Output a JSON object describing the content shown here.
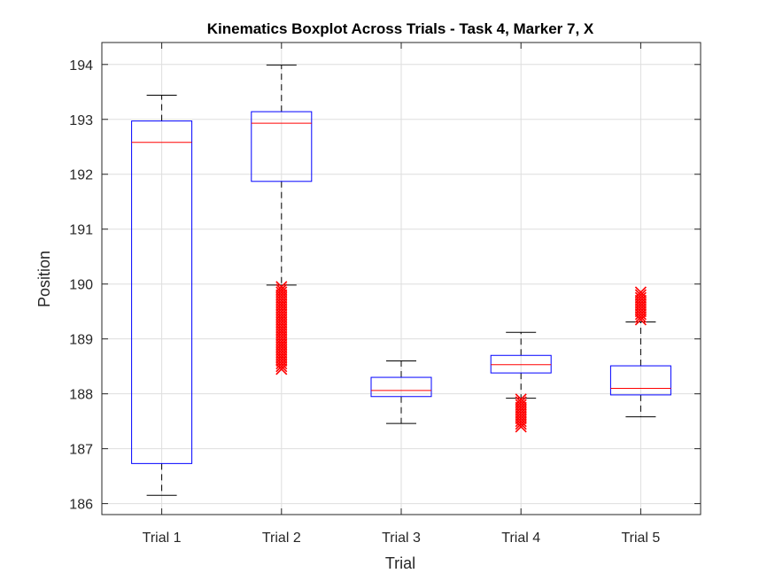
{
  "chart_data": {
    "type": "box",
    "title": "Kinematics Boxplot Across Trials - Task 4, Marker 7, X",
    "xlabel": "Trial",
    "ylabel": "Position",
    "categories": [
      "Trial 1",
      "Trial 2",
      "Trial 3",
      "Trial 4",
      "Trial 5"
    ],
    "ylim": [
      185.8,
      194.4
    ],
    "yticks": [
      186,
      187,
      188,
      189,
      190,
      191,
      192,
      193,
      194
    ],
    "grid": true,
    "series": [
      {
        "category": "Trial 1",
        "whisker_low": 186.15,
        "q1": 186.73,
        "median": 192.58,
        "q3": 192.97,
        "whisker_high": 193.44,
        "outliers": []
      },
      {
        "category": "Trial 2",
        "whisker_low": 189.98,
        "q1": 191.87,
        "median": 192.93,
        "q3": 193.14,
        "whisker_high": 193.99,
        "outliers": [
          189.95,
          189.9,
          189.85,
          189.8,
          189.75,
          189.7,
          189.65,
          189.6,
          189.55,
          189.5,
          189.45,
          189.4,
          189.35,
          189.3,
          189.25,
          189.2,
          189.15,
          189.1,
          189.05,
          189.0,
          188.95,
          188.9,
          188.85,
          188.8,
          188.75,
          188.7,
          188.65,
          188.6,
          188.55,
          188.5,
          188.45
        ]
      },
      {
        "category": "Trial 3",
        "whisker_low": 187.46,
        "q1": 187.95,
        "median": 188.06,
        "q3": 188.3,
        "whisker_high": 188.6,
        "outliers": []
      },
      {
        "category": "Trial 4",
        "whisker_low": 187.92,
        "q1": 188.38,
        "median": 188.53,
        "q3": 188.7,
        "whisker_high": 189.12,
        "outliers": [
          187.9,
          187.85,
          187.8,
          187.75,
          187.7,
          187.65,
          187.6,
          187.55,
          187.5,
          187.45,
          187.4
        ]
      },
      {
        "category": "Trial 5",
        "whisker_low": 187.58,
        "q1": 187.98,
        "median": 188.1,
        "q3": 188.51,
        "whisker_high": 189.31,
        "outliers": [
          189.35,
          189.4,
          189.45,
          189.5,
          189.55,
          189.6,
          189.65,
          189.7,
          189.75,
          189.8,
          189.85
        ]
      }
    ],
    "colors": {
      "box": "#0000ff",
      "median": "#ff0000",
      "whisker": "#000000",
      "outlier": "#ff0000",
      "grid": "#dedede",
      "axis": "#262626"
    }
  }
}
